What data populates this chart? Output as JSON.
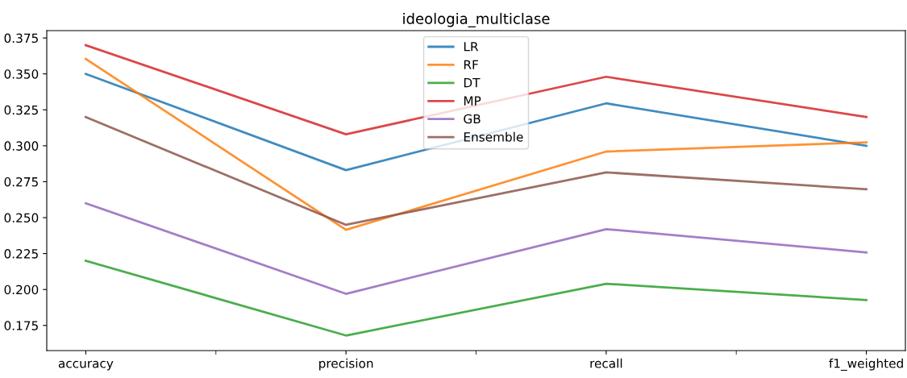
{
  "chart_data": {
    "type": "line",
    "title": "ideologia_multiclase",
    "categories": [
      "accuracy",
      "precision",
      "recall",
      "f1_weighted"
    ],
    "ylim": [
      0.1575,
      0.3801
    ],
    "yticks": [
      0.175,
      {
        "value": 0.2,
        "label": "0.200"
      },
      0.225,
      {
        "value": 0.25,
        "label": "0.250"
      },
      0.275,
      {
        "value": 0.3,
        "label": "0.300"
      },
      0.325,
      {
        "value": 0.35,
        "label": "0.350"
      },
      0.375
    ],
    "series": [
      {
        "name": "LR",
        "color": "#1f77b4",
        "values": [
          0.35,
          0.283,
          0.3295,
          0.3
        ]
      },
      {
        "name": "RF",
        "color": "#ff7f0e",
        "values": [
          0.3604,
          0.2415,
          0.296,
          0.3024
        ]
      },
      {
        "name": "DT",
        "color": "#2ca02c",
        "values": [
          0.22,
          0.168,
          0.204,
          0.1927
        ]
      },
      {
        "name": "MP",
        "color": "#d62728",
        "values": [
          0.37,
          0.308,
          0.348,
          0.32
        ]
      },
      {
        "name": "GB",
        "color": "#9467bd",
        "values": [
          0.26,
          0.197,
          0.242,
          0.2258
        ]
      },
      {
        "name": "Ensemble",
        "color": "#8c564b",
        "values": [
          0.32,
          0.245,
          0.2815,
          0.2697
        ]
      }
    ],
    "legend": "upper center",
    "grid": false,
    "marker": "none",
    "line_style": "solid"
  }
}
